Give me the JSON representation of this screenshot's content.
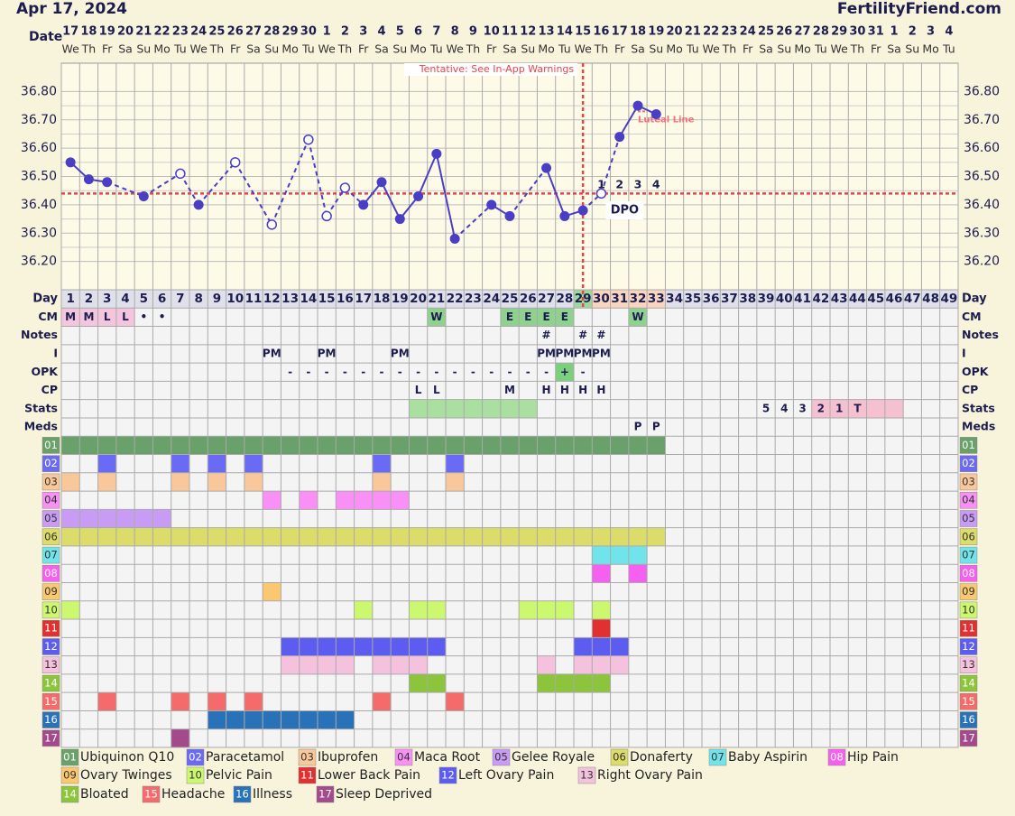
{
  "header": {
    "title": "Apr 17, 2024",
    "brand": "FertilityFriend.com"
  },
  "chart_data": {
    "type": "line",
    "date_label": "Date",
    "dates": [
      17,
      18,
      19,
      20,
      21,
      22,
      23,
      24,
      25,
      26,
      27,
      28,
      29,
      30,
      1,
      2,
      3,
      4,
      5,
      6,
      7,
      8,
      9,
      10,
      11,
      12,
      13,
      14,
      15,
      16,
      17,
      18,
      19,
      20,
      21,
      22,
      23,
      24,
      25,
      26,
      27,
      28,
      29,
      30,
      31,
      1,
      2,
      3,
      4
    ],
    "weekdays": [
      "We",
      "Th",
      "Fr",
      "Sa",
      "Su",
      "Mo",
      "Tu",
      "We",
      "Th",
      "Fr",
      "Sa",
      "Su",
      "Mo",
      "Tu",
      "We",
      "Th",
      "Fr",
      "Sa",
      "Su",
      "Mo",
      "Tu",
      "We",
      "Th",
      "Fr",
      "Sa",
      "Su",
      "Mo",
      "Tu",
      "We",
      "Th",
      "Fr",
      "Sa",
      "Su",
      "Mo",
      "Tu",
      "We",
      "Th",
      "Fr",
      "Sa",
      "Su",
      "Mo",
      "Tu",
      "We",
      "Th",
      "Fr",
      "Sa",
      "Su",
      "Mo",
      "Tu"
    ],
    "ylim": [
      36.1,
      36.9
    ],
    "yticks": [
      {
        "value": 36.2,
        "label": "36.20"
      },
      {
        "value": 36.3,
        "label": "36.30"
      },
      {
        "value": 36.4,
        "label": "36.40"
      },
      {
        "value": 36.5,
        "label": "36.50"
      },
      {
        "value": 36.6,
        "label": "36.60"
      },
      {
        "value": 36.7,
        "label": "36.70"
      },
      {
        "value": 36.8,
        "label": "36.80"
      }
    ],
    "day_label": "Day",
    "days": [
      1,
      2,
      3,
      4,
      5,
      6,
      7,
      8,
      9,
      10,
      11,
      12,
      13,
      14,
      15,
      16,
      17,
      18,
      19,
      20,
      21,
      22,
      23,
      24,
      25,
      26,
      27,
      28,
      29,
      30,
      31,
      32,
      33,
      34,
      35,
      36,
      37,
      38,
      39,
      40,
      41,
      42,
      43,
      44,
      45,
      46,
      47,
      48,
      49
    ],
    "temperatures": [
      36.55,
      36.49,
      36.48,
      null,
      36.43,
      null,
      36.51,
      36.4,
      null,
      36.55,
      null,
      36.33,
      null,
      36.63,
      36.36,
      36.46,
      36.4,
      36.48,
      36.35,
      36.43,
      36.58,
      36.28,
      null,
      36.4,
      36.36,
      null,
      36.53,
      36.36,
      36.38,
      36.44,
      36.64,
      36.75,
      36.72,
      null,
      null,
      null,
      null,
      null,
      null,
      null,
      null,
      null,
      null,
      null,
      null,
      null,
      null,
      null,
      null
    ],
    "open_days": [
      7,
      10,
      12,
      14,
      15,
      16,
      30
    ],
    "color": "#4a3fc4",
    "cover_line": 36.44,
    "cover_color": "#e0474c",
    "ovulation_day": 29,
    "annotation": "Tentative: See In-App Warnings",
    "luteal_line": {
      "value": 36.73,
      "days": [
        32,
        33
      ],
      "label": "Luteal Line",
      "color": "#f07080"
    },
    "dpo": {
      "label": "DPO",
      "values": [
        null,
        null,
        null,
        null,
        null,
        null,
        null,
        null,
        null,
        null,
        null,
        null,
        null,
        null,
        null,
        null,
        null,
        null,
        null,
        null,
        null,
        null,
        null,
        null,
        null,
        null,
        null,
        null,
        null,
        1,
        2,
        3,
        4,
        null,
        null,
        null,
        null,
        null,
        null,
        null,
        null,
        null,
        null,
        null,
        null,
        null,
        null,
        null,
        null
      ]
    },
    "day_fill": "#dfe0ea",
    "day_fills": [
      {
        "day": 29,
        "fill": "#9fd89f"
      },
      {
        "day": 30,
        "fill": "#f9d5c0"
      },
      {
        "day": 31,
        "fill": "#f9d5c0"
      },
      {
        "day": 32,
        "fill": "#f9d5c0"
      },
      {
        "day": 33,
        "fill": "#f9d5c0"
      }
    ],
    "rows": [
      {
        "label": "CM",
        "entries": [
          {
            "day": 1,
            "text": "M",
            "fill": "#f3c6de"
          },
          {
            "day": 2,
            "text": "M",
            "fill": "#f3c6de"
          },
          {
            "day": 3,
            "text": "L",
            "fill": "#f3c6de"
          },
          {
            "day": 4,
            "text": "L",
            "fill": "#f3c6de"
          },
          {
            "day": 5,
            "text": "•"
          },
          {
            "day": 6,
            "text": "•"
          },
          {
            "day": 21,
            "text": "W",
            "fill": "#8fd18f"
          },
          {
            "day": 25,
            "text": "E",
            "fill": "#8fd18f"
          },
          {
            "day": 26,
            "text": "E",
            "fill": "#8fd18f"
          },
          {
            "day": 27,
            "text": "E",
            "fill": "#8fd18f"
          },
          {
            "day": 28,
            "text": "E",
            "fill": "#8fd18f"
          },
          {
            "day": 32,
            "text": "W",
            "fill": "#8fd18f"
          }
        ]
      },
      {
        "label": "Notes",
        "entries": [
          {
            "day": 27,
            "text": "#"
          },
          {
            "day": 29,
            "text": "#"
          },
          {
            "day": 30,
            "text": "#"
          }
        ]
      },
      {
        "label": "I",
        "entries": [
          {
            "day": 12,
            "text": "PM"
          },
          {
            "day": 15,
            "text": "PM"
          },
          {
            "day": 19,
            "text": "PM"
          },
          {
            "day": 27,
            "text": "PM"
          },
          {
            "day": 28,
            "text": "PM"
          },
          {
            "day": 29,
            "text": "PM"
          },
          {
            "day": 30,
            "text": "PM"
          }
        ]
      },
      {
        "label": "OPK",
        "entries": [
          {
            "day": 13,
            "text": "-"
          },
          {
            "day": 14,
            "text": "-"
          },
          {
            "day": 15,
            "text": "-"
          },
          {
            "day": 16,
            "text": "-"
          },
          {
            "day": 17,
            "text": "-"
          },
          {
            "day": 18,
            "text": "-"
          },
          {
            "day": 19,
            "text": "-"
          },
          {
            "day": 20,
            "text": "-"
          },
          {
            "day": 21,
            "text": "-"
          },
          {
            "day": 22,
            "text": "-"
          },
          {
            "day": 23,
            "text": "-"
          },
          {
            "day": 24,
            "text": "-"
          },
          {
            "day": 25,
            "text": "-"
          },
          {
            "day": 26,
            "text": "-"
          },
          {
            "day": 27,
            "text": "-"
          },
          {
            "day": 28,
            "text": "+",
            "fill": "#7ccf7c"
          },
          {
            "day": 29,
            "text": "-"
          }
        ]
      },
      {
        "label": "CP",
        "entries": [
          {
            "day": 20,
            "text": "L"
          },
          {
            "day": 21,
            "text": "L"
          },
          {
            "day": 25,
            "text": "M"
          },
          {
            "day": 27,
            "text": "H"
          },
          {
            "day": 28,
            "text": "H"
          },
          {
            "day": 29,
            "text": "H"
          },
          {
            "day": 30,
            "text": "H"
          }
        ]
      },
      {
        "label": "Stats",
        "entries": [
          {
            "day": 20,
            "fill": "#a9e0a0"
          },
          {
            "day": 21,
            "fill": "#a9e0a0"
          },
          {
            "day": 22,
            "fill": "#a9e0a0"
          },
          {
            "day": 23,
            "fill": "#a9e0a0"
          },
          {
            "day": 24,
            "fill": "#a9e0a0"
          },
          {
            "day": 25,
            "fill": "#a9e0a0"
          },
          {
            "day": 26,
            "fill": "#a9e0a0"
          },
          {
            "day": 39,
            "text": "5"
          },
          {
            "day": 40,
            "text": "4"
          },
          {
            "day": 41,
            "text": "3"
          },
          {
            "day": 42,
            "text": "2",
            "fill": "#f5c0d0"
          },
          {
            "day": 43,
            "text": "1",
            "fill": "#f5c0d0"
          },
          {
            "day": 44,
            "text": "T",
            "fill": "#f5c0d0"
          },
          {
            "day": 45,
            "fill": "#f5c0d0"
          },
          {
            "day": 46,
            "fill": "#f5c0d0"
          }
        ]
      },
      {
        "label": "Meds",
        "entries": [
          {
            "day": 32,
            "text": "P"
          },
          {
            "day": 33,
            "text": "P"
          }
        ]
      }
    ],
    "items": [
      {
        "code": "01",
        "name": "Ubiquinon Q10",
        "color": "#6aa06a",
        "days": [
          1,
          2,
          3,
          4,
          5,
          6,
          7,
          8,
          9,
          10,
          11,
          12,
          13,
          14,
          15,
          16,
          17,
          18,
          19,
          20,
          21,
          22,
          23,
          24,
          25,
          26,
          27,
          28,
          29,
          30,
          31,
          32,
          33
        ]
      },
      {
        "code": "02",
        "name": "Paracetamol",
        "color": "#6a6af5",
        "days": [
          3,
          7,
          9,
          11,
          18,
          22
        ]
      },
      {
        "code": "03",
        "name": "Ibuprofen",
        "color": "#f9c89a",
        "days": [
          1,
          3,
          7,
          9,
          11,
          18,
          22
        ]
      },
      {
        "code": "04",
        "name": "Maca Root",
        "color": "#f890f5",
        "days": [
          12,
          14,
          16,
          17,
          18,
          19
        ]
      },
      {
        "code": "05",
        "name": "Gelee Royale",
        "color": "#c89cf5",
        "days": [
          1,
          2,
          3,
          4,
          5,
          6
        ]
      },
      {
        "code": "06",
        "name": "Donaferty",
        "color": "#dcdc6a",
        "days": [
          1,
          2,
          3,
          4,
          5,
          6,
          7,
          8,
          9,
          10,
          11,
          12,
          13,
          14,
          15,
          16,
          17,
          18,
          19,
          20,
          21,
          22,
          23,
          24,
          25,
          26,
          27,
          28,
          29,
          30,
          31,
          32,
          33
        ]
      },
      {
        "code": "07",
        "name": "Baby Aspirin",
        "color": "#70e4ea",
        "days": [
          30,
          31,
          32
        ]
      },
      {
        "code": "08",
        "name": "Hip Pain",
        "color": "#f560f0",
        "days": [
          30,
          32
        ]
      },
      {
        "code": "09",
        "name": "Ovary Twinges",
        "color": "#f9c870",
        "days": [
          12
        ]
      },
      {
        "code": "10",
        "name": "Pelvic Pain",
        "color": "#ccf870",
        "days": [
          1,
          17,
          20,
          21,
          26,
          27,
          28,
          30
        ]
      },
      {
        "code": "11",
        "name": "Lower Back Pain",
        "color": "#e03030",
        "days": [
          30
        ]
      },
      {
        "code": "12",
        "name": "Left Ovary Pain",
        "color": "#5c5cf0",
        "days": [
          13,
          14,
          15,
          16,
          17,
          18,
          19,
          20,
          21,
          29,
          30,
          31
        ]
      },
      {
        "code": "13",
        "name": "Right Ovary Pain",
        "color": "#f4c2dc",
        "days": [
          13,
          14,
          15,
          16,
          18,
          19,
          20,
          27,
          29,
          30,
          31
        ]
      },
      {
        "code": "14",
        "name": "Bloated",
        "color": "#8cc43c",
        "days": [
          20,
          21,
          27,
          28,
          29,
          30
        ]
      },
      {
        "code": "15",
        "name": "Headache",
        "color": "#f56a6a",
        "days": [
          3,
          7,
          9,
          11,
          18,
          22
        ]
      },
      {
        "code": "16",
        "name": "Illness",
        "color": "#2a72b8",
        "days": [
          9,
          10,
          11,
          12,
          13,
          14,
          15,
          16
        ]
      },
      {
        "code": "17",
        "name": "Sleep Deprived",
        "color": "#a44a8c",
        "days": [
          7
        ]
      }
    ]
  }
}
